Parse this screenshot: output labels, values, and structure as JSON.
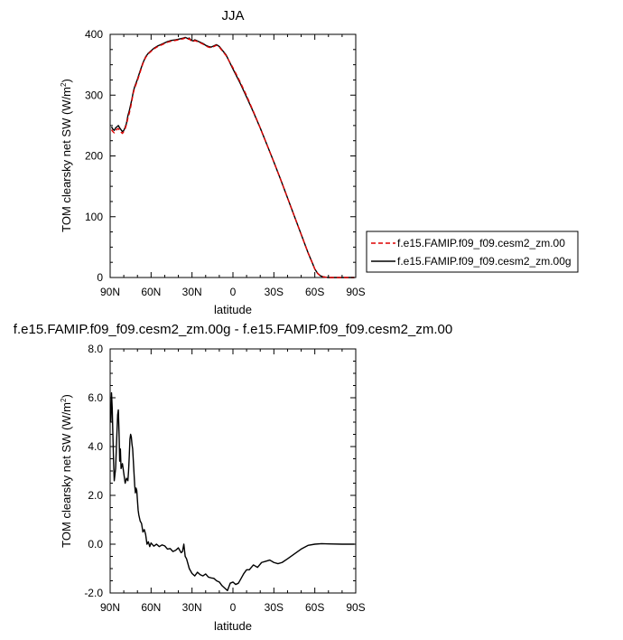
{
  "chart_data": [
    {
      "type": "line",
      "title": "JJA",
      "xlabel": "latitude",
      "ylabel": "TOM clearsky net SW (W/m",
      "ylabel_sup": "2",
      "ylabel_tail": ")",
      "xlim": [
        90,
        -90
      ],
      "ylim": [
        0,
        400
      ],
      "xticks": [
        90,
        60,
        30,
        0,
        -30,
        -60,
        -90
      ],
      "xtick_labels": [
        "90N",
        "60N",
        "30N",
        "0",
        "30S",
        "60S",
        "90S"
      ],
      "yticks": [
        0,
        100,
        200,
        300,
        400
      ],
      "ytick_labels": [
        "0",
        "100",
        "200",
        "300",
        "400"
      ],
      "legend_position": "right",
      "series": [
        {
          "name": "f.e15.FAMIP.f09_f09.cesm2_zm.00",
          "color": "#dd0000",
          "dash": "dashed",
          "x": [
            89,
            88,
            87,
            86,
            85,
            84,
            83,
            82,
            81,
            80,
            79,
            78,
            77,
            76,
            75,
            74,
            73,
            72,
            70,
            68,
            66,
            64,
            62,
            60,
            58,
            55,
            52,
            50,
            48,
            45,
            42,
            40,
            38,
            36,
            35,
            34,
            33,
            32,
            31,
            30,
            29,
            28,
            26,
            24,
            22,
            20,
            18,
            16,
            14,
            12,
            10,
            5,
            0,
            -5,
            -10,
            -15,
            -20,
            -25,
            -30,
            -35,
            -40,
            -45,
            -50,
            -55,
            -58,
            -60,
            -62,
            -64,
            -66,
            -68,
            -70,
            -75,
            -80,
            -85,
            -89
          ],
          "y": [
            243,
            240,
            238,
            241,
            244,
            245,
            242,
            239,
            237,
            240,
            245,
            252,
            262,
            270,
            280,
            292,
            304,
            312,
            324,
            338,
            352,
            362,
            368,
            372,
            376,
            380,
            383,
            385,
            387,
            389,
            390,
            391,
            392,
            393,
            394,
            393,
            392,
            393,
            390,
            389,
            388,
            390,
            388,
            386,
            384,
            381,
            379,
            378,
            380,
            382,
            379,
            365,
            345,
            323,
            299,
            273,
            246,
            218,
            190,
            161,
            131,
            101,
            71,
            41,
            25,
            14,
            7,
            3,
            1.2,
            0.4,
            0,
            0,
            0,
            0,
            0
          ]
        },
        {
          "name": "f.e15.FAMIP.f09_f09.cesm2_zm.00g",
          "color": "#000000",
          "dash": "solid",
          "x": [
            89,
            88,
            87,
            86,
            85,
            84,
            83,
            82,
            81,
            80,
            79,
            78,
            77,
            76,
            75,
            74,
            73,
            72,
            70,
            68,
            66,
            64,
            62,
            60,
            58,
            55,
            52,
            50,
            48,
            45,
            42,
            40,
            38,
            36,
            35,
            34,
            33,
            32,
            31,
            30,
            29,
            28,
            26,
            24,
            22,
            20,
            18,
            16,
            14,
            12,
            10,
            5,
            0,
            -5,
            -10,
            -15,
            -20,
            -25,
            -30,
            -35,
            -40,
            -45,
            -50,
            -55,
            -58,
            -60,
            -62,
            -64,
            -66,
            -68,
            -70,
            -75,
            -80,
            -85,
            -89
          ],
          "y": [
            248,
            244,
            242,
            246,
            248,
            250,
            246,
            243,
            240,
            242,
            247,
            254,
            266,
            274,
            284,
            294,
            306,
            314,
            326,
            340,
            353,
            363,
            369,
            373,
            377,
            381,
            384,
            386,
            388,
            390,
            391,
            392,
            393,
            394,
            395,
            394,
            393,
            394,
            391,
            390,
            389,
            391,
            389,
            387,
            385,
            382,
            380,
            379,
            381,
            383,
            380,
            366,
            343,
            321,
            297,
            272,
            246,
            218,
            190,
            161,
            131,
            101,
            71,
            41,
            25,
            14,
            7,
            3,
            1.2,
            0.4,
            0,
            0,
            0,
            0,
            0
          ]
        }
      ]
    },
    {
      "type": "line",
      "title": "f.e15.FAMIP.f09_f09.cesm2_zm.00g - f.e15.FAMIP.f09_f09.cesm2_zm.00",
      "xlabel": "latitude",
      "ylabel": "TOM clearsky net SW (W/m",
      "ylabel_sup": "2",
      "ylabel_tail": ")",
      "xlim": [
        90,
        -90
      ],
      "ylim": [
        -2,
        8
      ],
      "xticks": [
        90,
        60,
        30,
        0,
        -30,
        -60,
        -90
      ],
      "xtick_labels": [
        "90N",
        "60N",
        "30N",
        "0",
        "30S",
        "60S",
        "90S"
      ],
      "yticks": [
        -2,
        0,
        2,
        4,
        6,
        8
      ],
      "ytick_labels": [
        "-2.0",
        "0.0",
        "2.0",
        "4.0",
        "6.0",
        "8.0"
      ],
      "series": [
        {
          "color": "#000000",
          "dash": "solid",
          "x": [
            89.5,
            89,
            88.5,
            88,
            87.5,
            87,
            86,
            85,
            84.5,
            84,
            83.5,
            83,
            82.5,
            82,
            81,
            80,
            79,
            78,
            77,
            76.5,
            76,
            75.5,
            75,
            74.5,
            74,
            73.5,
            73,
            72,
            71.5,
            71,
            70.5,
            70,
            69.5,
            69,
            68,
            67,
            66,
            65,
            64,
            63,
            62,
            61,
            60,
            58,
            56,
            54,
            52,
            50,
            48,
            46,
            44,
            42,
            40,
            38,
            37,
            36,
            35,
            34,
            33,
            32,
            30,
            28,
            26,
            24,
            22,
            20,
            18,
            16,
            14,
            12,
            10,
            8,
            6,
            4,
            2,
            0,
            -2,
            -4,
            -6,
            -8,
            -10,
            -12,
            -15,
            -18,
            -21,
            -24,
            -27,
            -30,
            -33,
            -36,
            -40,
            -45,
            -50,
            -55,
            -60,
            -65,
            -70,
            -80,
            -89
          ],
          "y": [
            5.0,
            6.2,
            5.6,
            4.5,
            3.4,
            2.6,
            3.1,
            4.6,
            5.3,
            5.5,
            4.6,
            3.4,
            3.9,
            3.1,
            3.3,
            2.9,
            2.5,
            2.7,
            2.6,
            3.0,
            3.6,
            4.3,
            4.5,
            4.4,
            4.1,
            3.9,
            3.4,
            2.4,
            2.1,
            2.3,
            2.2,
            1.8,
            1.4,
            1.2,
            0.95,
            0.85,
            0.5,
            0.6,
            0.4,
            0.0,
            0.1,
            -0.1,
            0.05,
            -0.08,
            0.0,
            -0.1,
            -0.03,
            -0.07,
            -0.2,
            -0.18,
            -0.3,
            -0.25,
            -0.15,
            -0.35,
            -0.3,
            0.0,
            -0.5,
            -0.6,
            -0.8,
            -1.0,
            -1.2,
            -1.3,
            -1.15,
            -1.25,
            -1.3,
            -1.22,
            -1.35,
            -1.38,
            -1.4,
            -1.5,
            -1.55,
            -1.7,
            -1.8,
            -1.9,
            -1.6,
            -1.55,
            -1.65,
            -1.6,
            -1.4,
            -1.2,
            -1.05,
            -1.05,
            -0.85,
            -0.95,
            -0.75,
            -0.7,
            -0.65,
            -0.75,
            -0.8,
            -0.75,
            -0.6,
            -0.4,
            -0.2,
            -0.05,
            0.0,
            0.02,
            0.01,
            0.0,
            0.0
          ]
        }
      ]
    }
  ]
}
